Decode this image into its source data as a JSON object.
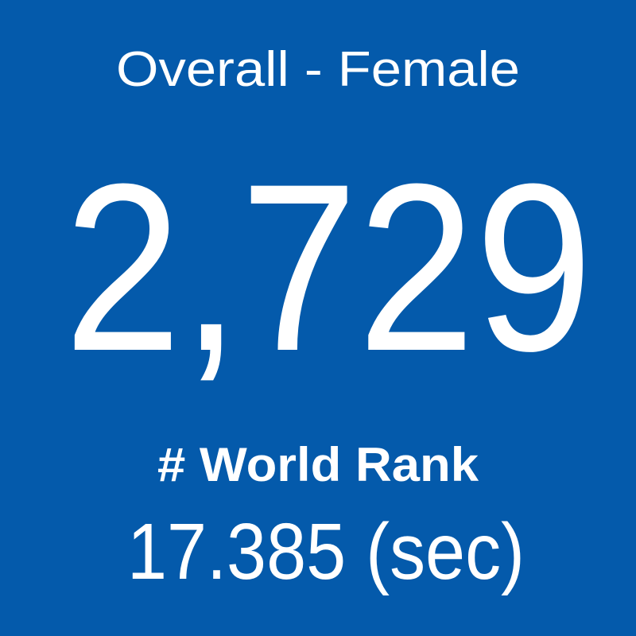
{
  "tile": {
    "title": "Overall - Female",
    "value": "2,729",
    "label": "# World Rank",
    "subtext": "17.385 (sec)"
  }
}
